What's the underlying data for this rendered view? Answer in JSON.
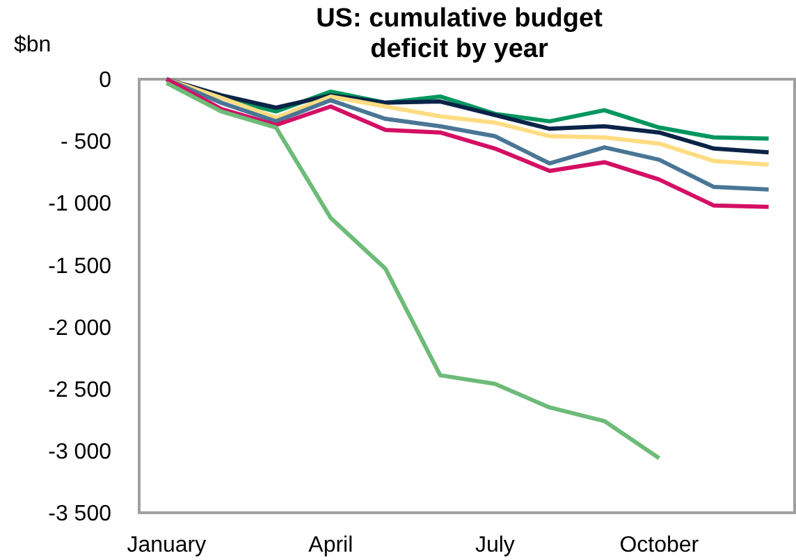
{
  "chart_data": {
    "type": "line",
    "title": "US: cumulative budget\ndeficit by year",
    "ylabel": "$bn",
    "categories": [
      "January",
      null,
      null,
      "April",
      null,
      null,
      "July",
      null,
      null,
      "October",
      null,
      null
    ],
    "ylim": [
      -3500,
      0
    ],
    "yticks": [
      0,
      {
        "value": -500,
        "label": "- 500"
      },
      {
        "value": -1000,
        "label": "-1 000"
      },
      {
        "value": -1500,
        "label": "-1 500"
      },
      {
        "value": -2000,
        "label": "-2 000"
      },
      {
        "value": -2500,
        "label": "-2 500"
      },
      {
        "value": -3000,
        "label": "-3 000"
      },
      {
        "value": -3500,
        "label": "-3 500"
      }
    ],
    "grid": false,
    "marker": "none",
    "line_style": "solid",
    "series": [
      {
        "color": "#00965e",
        "values": [
          0,
          -150,
          -260,
          -100,
          -190,
          -140,
          -280,
          -340,
          -250,
          -390,
          -470,
          -480
        ]
      },
      {
        "color": "#0a2347",
        "values": [
          0,
          -130,
          -230,
          -130,
          -190,
          -180,
          -290,
          -400,
          -380,
          -430,
          -560,
          -590
        ]
      },
      {
        "color": "#ffdc82",
        "values": [
          0,
          -150,
          -310,
          -140,
          -220,
          -300,
          -350,
          -460,
          -470,
          -520,
          -660,
          -690
        ]
      },
      {
        "color": "#4a7696",
        "values": [
          0,
          -190,
          -340,
          -170,
          -320,
          -380,
          -460,
          -680,
          -550,
          -650,
          -870,
          -890
        ]
      },
      {
        "color": "#d40f64",
        "values": [
          0,
          -240,
          -370,
          -220,
          -410,
          -430,
          -560,
          -740,
          -670,
          -810,
          -1020,
          -1030
        ]
      },
      {
        "color": "#6dbb78",
        "values": [
          -30,
          -260,
          -390,
          -1120,
          -1530,
          -2390,
          -2460,
          -2650,
          -2760,
          -3060,
          null,
          null
        ]
      }
    ]
  }
}
